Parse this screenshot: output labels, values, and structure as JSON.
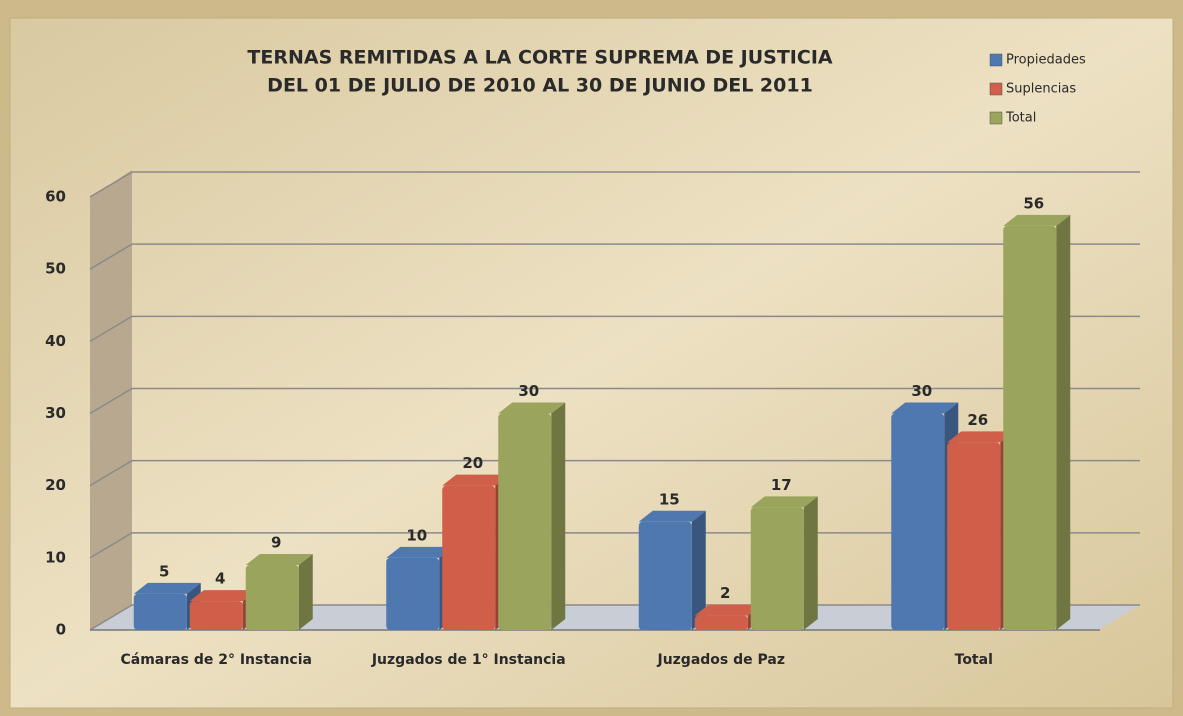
{
  "chart_data": {
    "type": "bar3d",
    "title": [
      "TERNAS REMITIDAS A LA CORTE SUPREMA DE JUSTICIA",
      "DEL 01 DE JULIO DE 2010 AL 30 DE JUNIO DEL 2011"
    ],
    "categories": [
      "Cámaras de 2° Instancia",
      "Juzgados de 1° Instancia",
      "Juzgados de Paz",
      "Total"
    ],
    "series": [
      {
        "name": "Propiedades",
        "color": "#4f78b0",
        "values": [
          5,
          10,
          15,
          30
        ]
      },
      {
        "name": "Suplencias",
        "color": "#cf5f48",
        "values": [
          4,
          20,
          2,
          26
        ]
      },
      {
        "name": "Total",
        "color": "#9ba45c",
        "values": [
          9,
          30,
          17,
          56
        ]
      }
    ],
    "ylim": [
      0,
      60
    ],
    "yticks": [
      0,
      10,
      20,
      30,
      40,
      50,
      60
    ],
    "grid": true,
    "legend": "top-right"
  }
}
